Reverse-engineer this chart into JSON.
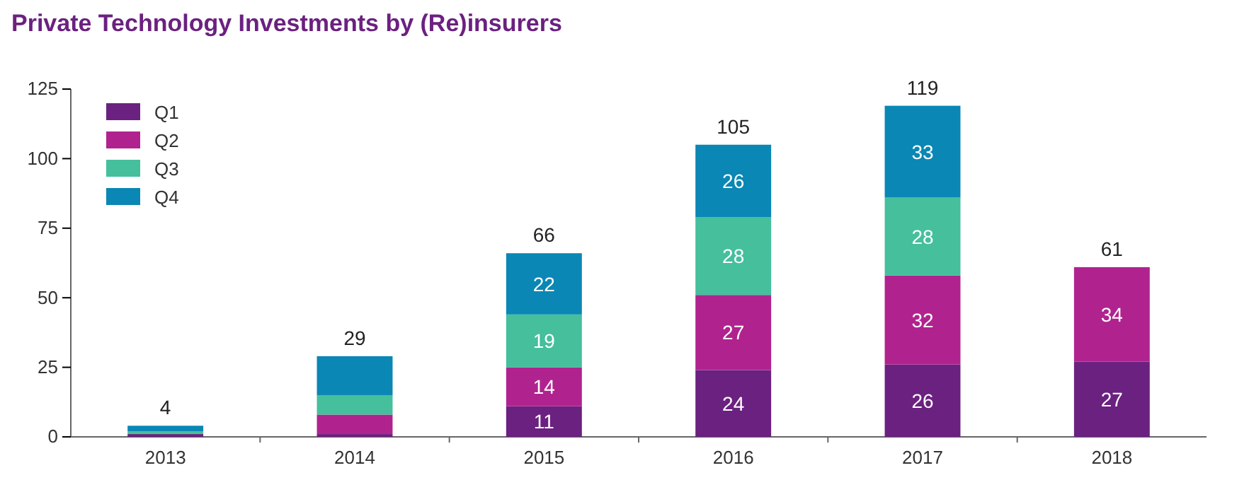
{
  "chart_data": {
    "type": "bar",
    "title": "Private Technology Investments by (Re)insurers",
    "stacked": true,
    "categories": [
      "2013",
      "2014",
      "2015",
      "2016",
      "2017",
      "2018"
    ],
    "series": [
      {
        "name": "Q1",
        "color": "#6b2180",
        "values": [
          1,
          1,
          11,
          24,
          26,
          27
        ],
        "value_labels": [
          null,
          null,
          "11",
          "24",
          "26",
          "27"
        ]
      },
      {
        "name": "Q2",
        "color": "#b0238f",
        "values": [
          0,
          7,
          14,
          27,
          32,
          34
        ],
        "value_labels": [
          null,
          null,
          "14",
          "27",
          "32",
          "34"
        ]
      },
      {
        "name": "Q3",
        "color": "#45bf9c",
        "values": [
          1,
          7,
          19,
          28,
          28,
          null
        ],
        "value_labels": [
          null,
          null,
          "19",
          "28",
          "28",
          null
        ]
      },
      {
        "name": "Q4",
        "color": "#0a87b4",
        "values": [
          2,
          14,
          22,
          26,
          33,
          null
        ],
        "value_labels": [
          null,
          null,
          "22",
          "26",
          "33",
          null
        ]
      }
    ],
    "totals": [
      "4",
      "29",
      "66",
      "105",
      "119",
      "61"
    ],
    "ylim": [
      0,
      125
    ],
    "yticks": [
      0,
      25,
      50,
      75,
      100,
      125
    ],
    "grid": false,
    "legend": "top left"
  }
}
